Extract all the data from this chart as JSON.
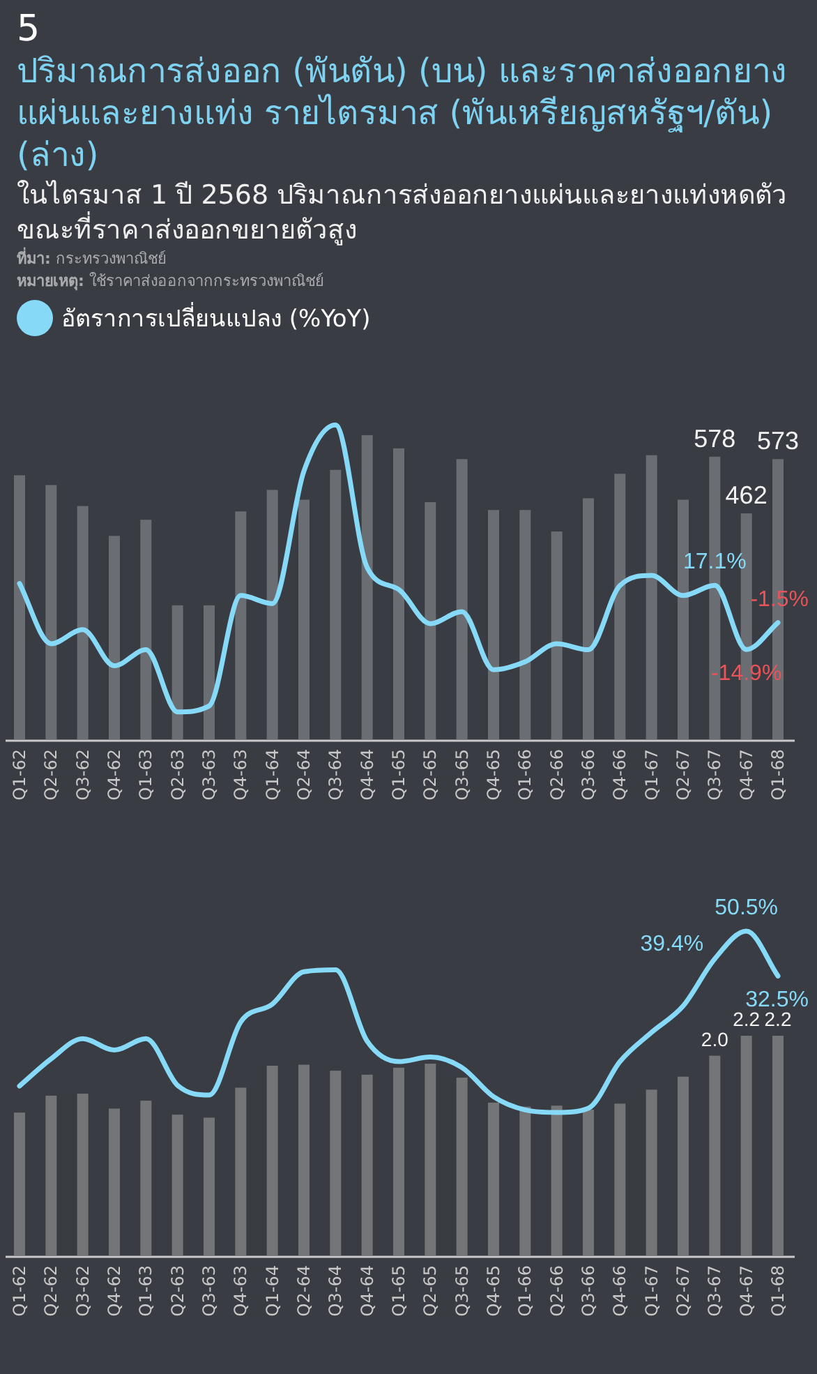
{
  "chart_data": [
    {
      "type": "bar",
      "title": "ปริมาณการส่งออก (พันตัน) (บน) และราคาส่งออกยางแผ่นและยางแท่ง รายไตรมาส (พันเหรียญสหรัฐฯ/ตัน) (ล่าง)",
      "subtitle": "ในไตรมาส 1 ปี 2568 ปริมาณการส่งออกยางแผ่นและยางแท่งหดตัว ขณะที่ราคาส่งออกขยายตัวสูง",
      "annotations": [
        "5",
        "**ที่มา:** กระทรวงพาณิชย์",
        "**หมายเหตุ:** ใช้ราคาส่งออกจากกระทรวงพาณิชย์"
      ],
      "categories": [
        "Q1-62",
        "Q2-62",
        "Q3-62",
        "Q4-62",
        "Q1-63",
        "Q2-63",
        "Q3-63",
        "Q4-63",
        "Q1-64",
        "Q2-64",
        "Q3-64",
        "Q4-64",
        "Q1-65",
        "Q2-65",
        "Q3-65",
        "Q4-65",
        "Q1-66",
        "Q2-66",
        "Q3-66",
        "Q4-66",
        "Q1-67",
        "Q2-67",
        "Q3-67",
        "Q4-67",
        "Q1-68"
      ],
      "tick_labels": "x",
      "legend": "top left",
      "series": [
        {
          "color": "#6a6d72",
          "values": [
            540,
            520,
            477,
            416,
            449,
            274,
            274,
            466,
            510,
            490,
            551,
            622,
            595,
            485,
            573,
            469,
            469,
            425,
            493,
            543,
            581,
            490,
            578,
            462,
            573
          ],
          "value_labels": [
            null,
            null,
            null,
            null,
            null,
            null,
            null,
            null,
            null,
            null,
            null,
            null,
            null,
            null,
            null,
            null,
            null,
            null,
            null,
            null,
            null,
            null,
            "578",
            "462",
            "573"
          ]
        },
        {
          "type": "line",
          "name": "อัตราการเปลี่ยนแปลง (%YoY)",
          "color": "#86d9f7",
          "axis": "y2",
          "values": [
            18,
            -12,
            -5,
            -23,
            -15,
            -46,
            -43,
            12,
            8,
            74,
            97,
            26,
            15,
            -2,
            4,
            -25,
            -21,
            -12,
            -15,
            17,
            22,
            12,
            17.1,
            -14.9,
            -1.5
          ],
          "value_labels": [
            null,
            null,
            null,
            null,
            null,
            null,
            null,
            null,
            null,
            null,
            null,
            null,
            null,
            null,
            null,
            null,
            null,
            null,
            null,
            null,
            null,
            null,
            "17.1%",
            "-14.9%",
            "-1.5%"
          ]
        }
      ]
    },
    {
      "type": "bar",
      "categories": [
        "Q1-62",
        "Q2-62",
        "Q3-62",
        "Q4-62",
        "Q1-63",
        "Q2-63",
        "Q3-63",
        "Q4-63",
        "Q1-64",
        "Q2-64",
        "Q3-64",
        "Q4-64",
        "Q1-65",
        "Q2-65",
        "Q3-65",
        "Q4-65",
        "Q1-66",
        "Q2-66",
        "Q3-66",
        "Q4-66",
        "Q1-67",
        "Q2-67",
        "Q3-67",
        "Q4-67",
        "Q1-68"
      ],
      "tick_labels": "x",
      "series": [
        {
          "color": "#747577",
          "values": [
            1.43,
            1.6,
            1.62,
            1.47,
            1.55,
            1.41,
            1.38,
            1.68,
            1.9,
            1.91,
            1.85,
            1.81,
            1.88,
            1.92,
            1.78,
            1.53,
            1.49,
            1.5,
            1.46,
            1.52,
            1.66,
            1.79,
            2.0,
            2.2,
            2.2
          ],
          "value_labels": [
            null,
            null,
            null,
            null,
            null,
            null,
            null,
            null,
            null,
            null,
            null,
            null,
            null,
            null,
            null,
            null,
            null,
            null,
            null,
            null,
            null,
            null,
            "2.0",
            "2.2",
            "2.2"
          ]
        },
        {
          "type": "line",
          "color": "#86d9f7",
          "axis": "y2",
          "values": [
            -11.6,
            -0.7,
            7.4,
            2.8,
            7.4,
            -11.3,
            -15.2,
            14.1,
            21.2,
            34.2,
            35,
            6.4,
            -1.8,
            0,
            -4.2,
            -15.9,
            -21.2,
            -22.2,
            -20.5,
            -1.8,
            9.9,
            20.5,
            39.4,
            50.5,
            32.5
          ],
          "value_labels": [
            null,
            null,
            null,
            null,
            null,
            null,
            null,
            null,
            null,
            null,
            null,
            null,
            null,
            null,
            null,
            null,
            null,
            null,
            null,
            null,
            null,
            null,
            "39.4%",
            "50.5%",
            "32.5%"
          ]
        }
      ]
    }
  ]
}
